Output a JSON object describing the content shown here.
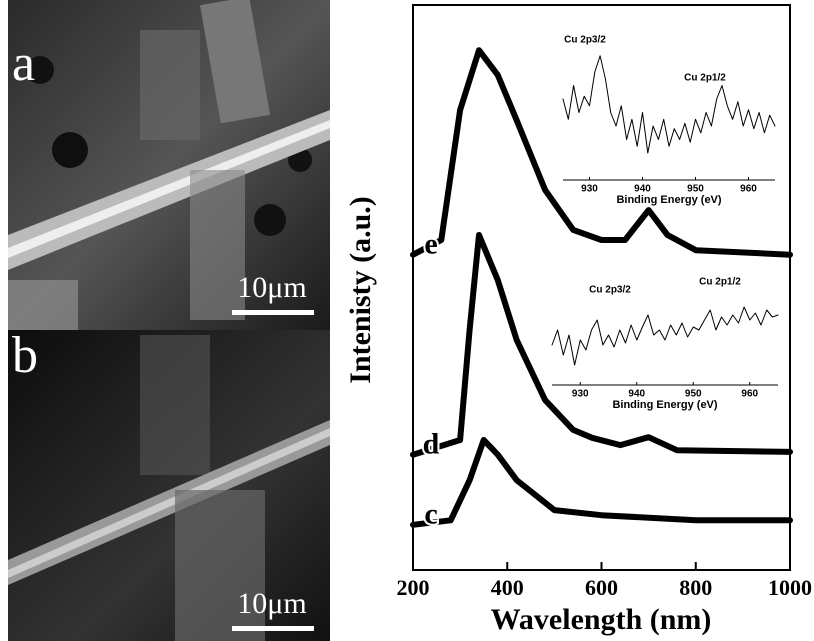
{
  "images": [
    {
      "label": "a",
      "scale_bar": "10μm"
    },
    {
      "label": "b",
      "scale_bar": "10μm"
    }
  ],
  "chart_data": [
    {
      "type": "line",
      "xlabel": "Wavelength (nm)",
      "ylabel": "Intenisty (a.u.)",
      "xlim": [
        200,
        1000
      ],
      "xticks": [
        200,
        400,
        600,
        800,
        1000
      ],
      "ylim": [
        0,
        100
      ],
      "series": [
        {
          "name": "e",
          "color": "#000000",
          "x": [
            200,
            260,
            300,
            340,
            380,
            420,
            480,
            540,
            600,
            650,
            700,
            740,
            800,
            1000
          ],
          "values": [
            55.8,
            58.4,
            81.4,
            92,
            87.6,
            79.6,
            67.3,
            60.2,
            58.4,
            58.4,
            63.7,
            59.3,
            56.6,
            55.8
          ]
        },
        {
          "name": "d",
          "color": "#000000",
          "x": [
            200,
            300,
            320,
            340,
            380,
            420,
            480,
            540,
            580,
            640,
            700,
            760,
            1000
          ],
          "values": [
            20.4,
            23,
            42.5,
            59.3,
            51.3,
            40.7,
            30.1,
            24.8,
            23.4,
            22.1,
            23.5,
            21.2,
            20.9
          ]
        },
        {
          "name": "c",
          "color": "#000000",
          "x": [
            200,
            280,
            320,
            350,
            380,
            420,
            500,
            600,
            800,
            1000
          ],
          "values": [
            8,
            8.8,
            15.9,
            23,
            20.4,
            15.9,
            10.6,
            9.7,
            8.8,
            8.8
          ]
        }
      ]
    },
    {
      "type": "line",
      "xlabel": "Binding Energy (eV)",
      "annotations": [
        "Cu 2p3/2",
        "Cu 2p1/2"
      ],
      "xlim": [
        925,
        965
      ],
      "xticks": [
        930,
        940,
        950,
        960
      ],
      "ylim": [
        0,
        100
      ],
      "series": [
        {
          "color": "#000000",
          "x": [
            925,
            926,
            927,
            928,
            929,
            930,
            931,
            932,
            933,
            934,
            935,
            936,
            937,
            938,
            939,
            940,
            941,
            942,
            943,
            944,
            945,
            946,
            947,
            948,
            949,
            950,
            951,
            952,
            953,
            954,
            955,
            956,
            957,
            958,
            959,
            960,
            961,
            962,
            963,
            964,
            965
          ],
          "values": [
            60,
            45,
            70,
            50,
            62,
            55,
            80,
            92,
            75,
            50,
            40,
            55,
            30,
            45,
            25,
            50,
            20,
            40,
            30,
            45,
            25,
            38,
            30,
            42,
            28,
            45,
            35,
            50,
            40,
            60,
            70,
            55,
            45,
            58,
            40,
            52,
            38,
            50,
            35,
            48,
            40
          ]
        }
      ]
    },
    {
      "type": "line",
      "xlabel": "Binding Energy (eV)",
      "annotations": [
        "Cu 2p3/2",
        "Cu 2p1/2"
      ],
      "xlim": [
        925,
        965
      ],
      "xticks": [
        930,
        940,
        950,
        960
      ],
      "ylim": [
        0,
        100
      ],
      "series": [
        {
          "color": "#000000",
          "x": [
            925,
            926,
            927,
            928,
            929,
            930,
            931,
            932,
            933,
            934,
            935,
            936,
            937,
            938,
            939,
            940,
            941,
            942,
            943,
            944,
            945,
            946,
            947,
            948,
            949,
            950,
            951,
            952,
            953,
            954,
            955,
            956,
            957,
            958,
            959,
            960,
            961,
            962,
            963,
            964,
            965
          ],
          "values": [
            40,
            55,
            30,
            50,
            20,
            45,
            35,
            55,
            65,
            40,
            50,
            38,
            55,
            42,
            60,
            45,
            58,
            70,
            50,
            55,
            45,
            60,
            50,
            62,
            48,
            58,
            55,
            65,
            75,
            55,
            68,
            60,
            70,
            62,
            78,
            65,
            72,
            60,
            75,
            68,
            70
          ]
        }
      ]
    }
  ]
}
